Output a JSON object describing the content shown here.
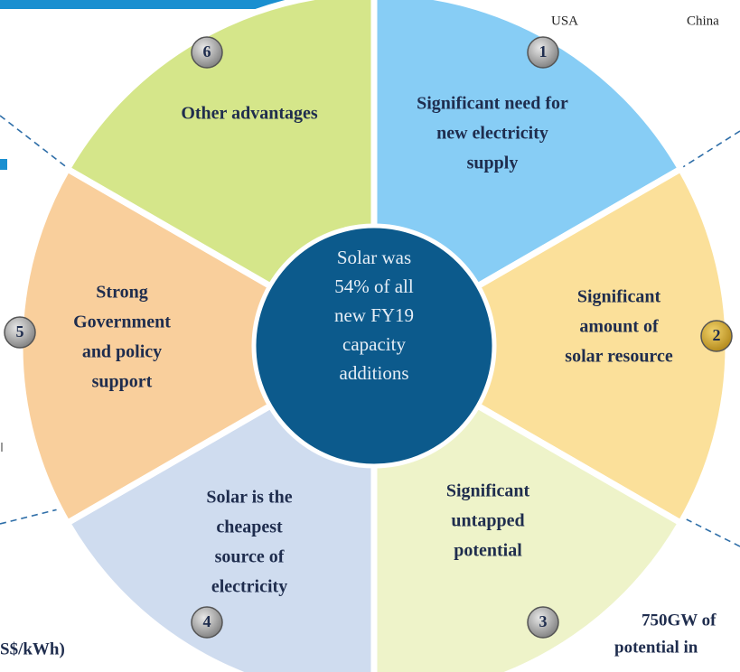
{
  "center": {
    "lines": [
      "Solar was",
      "54% of all",
      "new FY19",
      "capacity",
      "additions"
    ]
  },
  "sectors": [
    {
      "number": "1",
      "lines": [
        "Significant need for",
        "new electricity",
        "supply"
      ]
    },
    {
      "number": "2",
      "lines": [
        "Significant",
        "amount of",
        "solar resource"
      ]
    },
    {
      "number": "3",
      "lines": [
        "Significant",
        "untapped",
        "potential"
      ]
    },
    {
      "number": "4",
      "lines": [
        "Solar is the",
        "cheapest",
        "source of",
        "electricity"
      ]
    },
    {
      "number": "5",
      "lines": [
        "Strong",
        "Government",
        "and policy",
        "support"
      ]
    },
    {
      "number": "6",
      "lines": [
        "Other advantages"
      ]
    }
  ],
  "fragments": {
    "usa": "USA",
    "china": "China",
    "cost": "S$/kWh)",
    "gw": "750GW of",
    "potential": "potential in"
  }
}
